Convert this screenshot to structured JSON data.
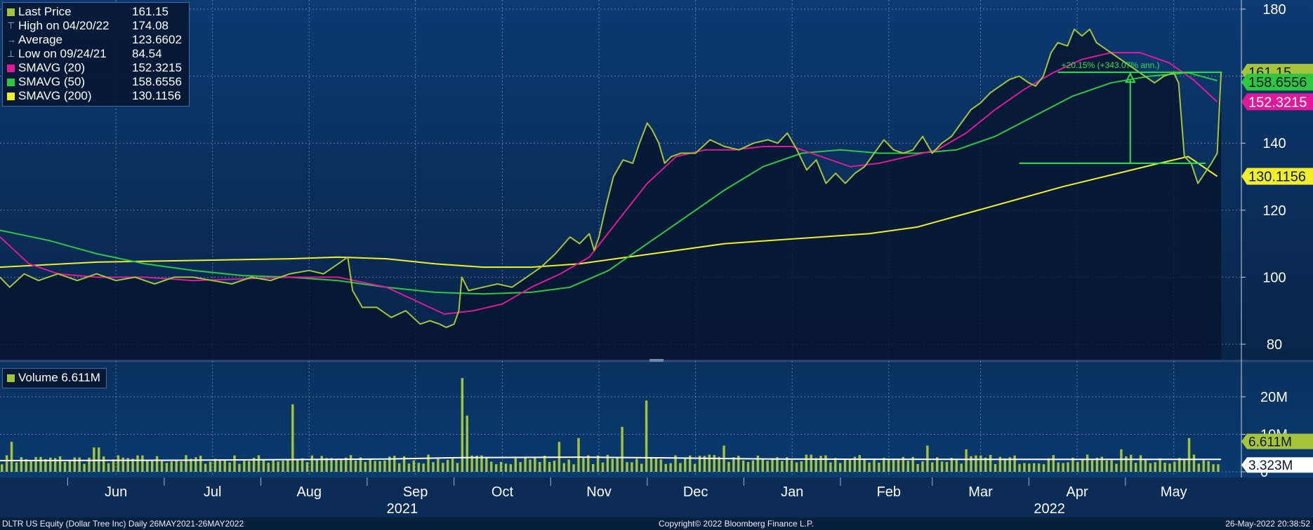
{
  "legend": {
    "items": [
      {
        "label": "Last Price",
        "value": "161.15",
        "kind": "swatch",
        "color": "#a6c43a"
      },
      {
        "label": "High on 04/20/22",
        "value": "174.08",
        "kind": "glyph",
        "glyph": "⊤"
      },
      {
        "label": "Average",
        "value": "123.6602",
        "kind": "glyph",
        "glyph": "→"
      },
      {
        "label": "Low on 09/24/21",
        "value": "84.54",
        "kind": "glyph",
        "glyph": "⊥"
      },
      {
        "label": "SMAVG (20)",
        "value": "152.3215",
        "kind": "swatch",
        "color": "#e0189a"
      },
      {
        "label": "SMAVG (50)",
        "value": "158.6556",
        "kind": "swatch",
        "color": "#2fc640"
      },
      {
        "label": "SMAVG (200)",
        "value": "130.1156",
        "kind": "swatch",
        "color": "#f2ee2a"
      }
    ]
  },
  "volume_legend": {
    "label": "Volume 6.611M",
    "color": "#a6c43a"
  },
  "footer": {
    "left": "DLTR US Equity (Dollar Tree Inc)  Daily 26MAY2021-26MAY2022",
    "center": "Copyright© 2022 Bloomberg Finance L.P.",
    "right": "26-May-2022 20:38:52"
  },
  "chart_data": {
    "type": "line",
    "price_axis": {
      "ticks": [
        "80",
        "100",
        "120",
        "140",
        "160",
        "180"
      ],
      "ylim": [
        75,
        180
      ]
    },
    "volume_axis": {
      "ticks": [
        "0",
        "10M",
        "20M"
      ],
      "ylim": [
        0,
        27
      ]
    },
    "x_months": [
      {
        "label": "Jun",
        "x": 1.2
      },
      {
        "label": "Jul",
        "x": 2.2
      },
      {
        "label": "Aug",
        "x": 3.2
      },
      {
        "label": "Sep",
        "x": 4.3
      },
      {
        "label": "Oct",
        "x": 5.2
      },
      {
        "label": "Nov",
        "x": 6.2
      },
      {
        "label": "Dec",
        "x": 7.2
      },
      {
        "label": "Jan",
        "x": 8.2
      },
      {
        "label": "Feb",
        "x": 9.2
      },
      {
        "label": "Mar",
        "x": 10.15
      },
      {
        "label": "Apr",
        "x": 11.15
      },
      {
        "label": "May",
        "x": 12.15
      }
    ],
    "x_years": [
      {
        "label": "2021",
        "x": 3.8
      },
      {
        "label": "2022",
        "x": 10.5
      }
    ],
    "xlim": [
      0,
      12.85
    ],
    "series": [
      {
        "name": "Last Price",
        "color": "#a6c43a",
        "fill": true,
        "points": [
          [
            0,
            100
          ],
          [
            0.1,
            97
          ],
          [
            0.25,
            101
          ],
          [
            0.4,
            99
          ],
          [
            0.6,
            101
          ],
          [
            0.8,
            99
          ],
          [
            1.0,
            101
          ],
          [
            1.2,
            99
          ],
          [
            1.4,
            100
          ],
          [
            1.6,
            98
          ],
          [
            1.8,
            100
          ],
          [
            2.0,
            100
          ],
          [
            2.2,
            99
          ],
          [
            2.4,
            98
          ],
          [
            2.6,
            100
          ],
          [
            2.8,
            99
          ],
          [
            3.0,
            101
          ],
          [
            3.2,
            102
          ],
          [
            3.35,
            101
          ],
          [
            3.5,
            104
          ],
          [
            3.6,
            106
          ],
          [
            3.65,
            96
          ],
          [
            3.75,
            91
          ],
          [
            3.9,
            91
          ],
          [
            4.05,
            88
          ],
          [
            4.2,
            90
          ],
          [
            4.35,
            86
          ],
          [
            4.45,
            87
          ],
          [
            4.55,
            86
          ],
          [
            4.62,
            85
          ],
          [
            4.7,
            86
          ],
          [
            4.75,
            90
          ],
          [
            4.78,
            100
          ],
          [
            4.85,
            96
          ],
          [
            5.0,
            97
          ],
          [
            5.15,
            98
          ],
          [
            5.3,
            97
          ],
          [
            5.45,
            100
          ],
          [
            5.6,
            103
          ],
          [
            5.75,
            107
          ],
          [
            5.9,
            112
          ],
          [
            6.0,
            110
          ],
          [
            6.1,
            113
          ],
          [
            6.15,
            108
          ],
          [
            6.2,
            112
          ],
          [
            6.28,
            122
          ],
          [
            6.35,
            130
          ],
          [
            6.45,
            135
          ],
          [
            6.55,
            134
          ],
          [
            6.62,
            140
          ],
          [
            6.7,
            146
          ],
          [
            6.75,
            144
          ],
          [
            6.82,
            140
          ],
          [
            6.88,
            134
          ],
          [
            6.95,
            136
          ],
          [
            7.05,
            137
          ],
          [
            7.2,
            137
          ],
          [
            7.35,
            141
          ],
          [
            7.5,
            139
          ],
          [
            7.65,
            138
          ],
          [
            7.8,
            140
          ],
          [
            7.95,
            141
          ],
          [
            8.05,
            140
          ],
          [
            8.15,
            143
          ],
          [
            8.25,
            138
          ],
          [
            8.35,
            132
          ],
          [
            8.45,
            135
          ],
          [
            8.55,
            128
          ],
          [
            8.65,
            131
          ],
          [
            8.75,
            128
          ],
          [
            8.85,
            131
          ],
          [
            8.95,
            133
          ],
          [
            9.05,
            137
          ],
          [
            9.15,
            141
          ],
          [
            9.25,
            138
          ],
          [
            9.35,
            137
          ],
          [
            9.45,
            138
          ],
          [
            9.55,
            142
          ],
          [
            9.65,
            137
          ],
          [
            9.75,
            140
          ],
          [
            9.85,
            142
          ],
          [
            9.95,
            146
          ],
          [
            10.05,
            150
          ],
          [
            10.15,
            152
          ],
          [
            10.25,
            155
          ],
          [
            10.35,
            157
          ],
          [
            10.45,
            159
          ],
          [
            10.55,
            160
          ],
          [
            10.65,
            158
          ],
          [
            10.72,
            157
          ],
          [
            10.8,
            160
          ],
          [
            10.88,
            167
          ],
          [
            10.95,
            170
          ],
          [
            11.05,
            169
          ],
          [
            11.12,
            174
          ],
          [
            11.2,
            172
          ],
          [
            11.28,
            174
          ],
          [
            11.35,
            170
          ],
          [
            11.45,
            168
          ],
          [
            11.55,
            166
          ],
          [
            11.65,
            164
          ],
          [
            11.75,
            162
          ],
          [
            11.85,
            160
          ],
          [
            11.95,
            158
          ],
          [
            12.05,
            160
          ],
          [
            12.15,
            161
          ],
          [
            12.2,
            158
          ],
          [
            12.26,
            136
          ],
          [
            12.33,
            134
          ],
          [
            12.4,
            128
          ],
          [
            12.47,
            131
          ],
          [
            12.54,
            134
          ],
          [
            12.6,
            137
          ],
          [
            12.64,
            161.15
          ]
        ]
      },
      {
        "name": "SMAVG (20)",
        "color": "#e0189a",
        "fill": false,
        "points": [
          [
            0,
            112
          ],
          [
            0.3,
            104
          ],
          [
            0.6,
            101
          ],
          [
            1.0,
            100
          ],
          [
            1.5,
            100
          ],
          [
            2.0,
            99
          ],
          [
            2.5,
            99.5
          ],
          [
            3.0,
            100
          ],
          [
            3.5,
            100
          ],
          [
            4.0,
            97
          ],
          [
            4.3,
            93
          ],
          [
            4.6,
            89
          ],
          [
            4.9,
            90
          ],
          [
            5.2,
            92
          ],
          [
            5.5,
            97
          ],
          [
            5.8,
            101
          ],
          [
            6.1,
            106
          ],
          [
            6.4,
            117
          ],
          [
            6.7,
            128
          ],
          [
            7.0,
            136
          ],
          [
            7.3,
            138
          ],
          [
            7.6,
            138
          ],
          [
            7.9,
            139
          ],
          [
            8.2,
            139
          ],
          [
            8.5,
            136
          ],
          [
            8.8,
            133
          ],
          [
            9.1,
            134
          ],
          [
            9.4,
            136
          ],
          [
            9.7,
            138
          ],
          [
            10.0,
            143
          ],
          [
            10.3,
            150
          ],
          [
            10.6,
            156
          ],
          [
            10.9,
            161
          ],
          [
            11.2,
            165
          ],
          [
            11.5,
            167
          ],
          [
            11.8,
            167
          ],
          [
            12.1,
            164
          ],
          [
            12.35,
            159
          ],
          [
            12.6,
            152.3
          ]
        ]
      },
      {
        "name": "SMAVG (50)",
        "color": "#2fc640",
        "fill": false,
        "points": [
          [
            0,
            114
          ],
          [
            0.5,
            111
          ],
          [
            1.0,
            107
          ],
          [
            1.5,
            104
          ],
          [
            2.0,
            102
          ],
          [
            2.5,
            100.5
          ],
          [
            3.0,
            100
          ],
          [
            3.5,
            99
          ],
          [
            4.0,
            97
          ],
          [
            4.5,
            95.5
          ],
          [
            5.0,
            95
          ],
          [
            5.5,
            95.5
          ],
          [
            5.9,
            97
          ],
          [
            6.3,
            102
          ],
          [
            6.7,
            110
          ],
          [
            7.1,
            118
          ],
          [
            7.5,
            126
          ],
          [
            7.9,
            133
          ],
          [
            8.3,
            137
          ],
          [
            8.7,
            138
          ],
          [
            9.1,
            137
          ],
          [
            9.5,
            137
          ],
          [
            9.9,
            138
          ],
          [
            10.3,
            142
          ],
          [
            10.7,
            148
          ],
          [
            11.1,
            154
          ],
          [
            11.5,
            158
          ],
          [
            11.9,
            160
          ],
          [
            12.3,
            161
          ],
          [
            12.6,
            158.66
          ]
        ]
      },
      {
        "name": "SMAVG (200)",
        "color": "#f2ee2a",
        "fill": false,
        "points": [
          [
            0,
            103
          ],
          [
            1.0,
            104.5
          ],
          [
            2.0,
            105
          ],
          [
            3.0,
            105.5
          ],
          [
            3.5,
            106
          ],
          [
            4.0,
            105.5
          ],
          [
            4.5,
            104
          ],
          [
            5.0,
            103
          ],
          [
            5.5,
            103
          ],
          [
            6.0,
            104
          ],
          [
            6.5,
            106
          ],
          [
            7.0,
            108
          ],
          [
            7.5,
            110
          ],
          [
            8.0,
            111
          ],
          [
            8.5,
            112
          ],
          [
            9.0,
            113
          ],
          [
            9.5,
            115
          ],
          [
            10.0,
            119
          ],
          [
            10.5,
            123
          ],
          [
            11.0,
            127
          ],
          [
            11.5,
            130.5
          ],
          [
            12.0,
            134
          ],
          [
            12.3,
            136
          ],
          [
            12.6,
            130.1
          ]
        ]
      }
    ],
    "price_labels": [
      {
        "text": "161.15",
        "value": 161.15,
        "bg": "#a6c43a",
        "fg": "#0a1a2e",
        "series": "Last Price"
      },
      {
        "text": "158.6556",
        "value": 158.6556,
        "bg": "#2fc640",
        "fg": "#0a1a2e",
        "series": "SMAVG (50)"
      },
      {
        "text": "152.3215",
        "value": 152.3215,
        "bg": "#e0189a",
        "fg": "#ffffff",
        "series": "SMAVG (20)"
      },
      {
        "text": "130.1156",
        "value": 130.1156,
        "bg": "#f2ee2a",
        "fg": "#0a1a2e",
        "series": "SMAVG (200)"
      }
    ],
    "annotation": {
      "text": "+20.15% (+343.07% ann.)",
      "color": "#2fe04a",
      "top_line": {
        "x0": 10.95,
        "x1": 12.65,
        "value": 161.15
      },
      "bottom_line": {
        "x0": 10.55,
        "x1": 12.48,
        "value": 134
      },
      "arrow_x": 11.7
    },
    "volume": {
      "name": "Volume",
      "color": "#a6c43a",
      "avg_color": "#ffffff",
      "last_label": {
        "text": "6.611M",
        "value": 6.611,
        "bg": "#a6c43a",
        "fg": "#0a1a2e"
      },
      "avg_label": {
        "text": "3.323M",
        "value": 3.323,
        "bg": "#ffffff",
        "fg": "#0a1a2e"
      },
      "avg_points": [
        [
          0,
          3.0
        ],
        [
          2.0,
          3.1
        ],
        [
          4.0,
          3.4
        ],
        [
          4.8,
          3.8
        ],
        [
          6.0,
          3.9
        ],
        [
          7.0,
          3.7
        ],
        [
          8.0,
          3.4
        ],
        [
          10.0,
          3.3
        ],
        [
          12.64,
          3.3
        ]
      ],
      "spikes": [
        [
          0.1,
          8
        ],
        [
          1.0,
          6.5
        ],
        [
          3.05,
          18
        ],
        [
          4.78,
          25
        ],
        [
          4.85,
          15
        ],
        [
          6.7,
          19
        ],
        [
          6.45,
          12
        ],
        [
          6.0,
          9
        ],
        [
          5.8,
          8
        ],
        [
          7.5,
          7
        ],
        [
          9.6,
          7
        ],
        [
          10.0,
          6
        ],
        [
          11.6,
          6
        ],
        [
          12.33,
          9
        ],
        [
          12.64,
          6.6
        ]
      ]
    }
  }
}
